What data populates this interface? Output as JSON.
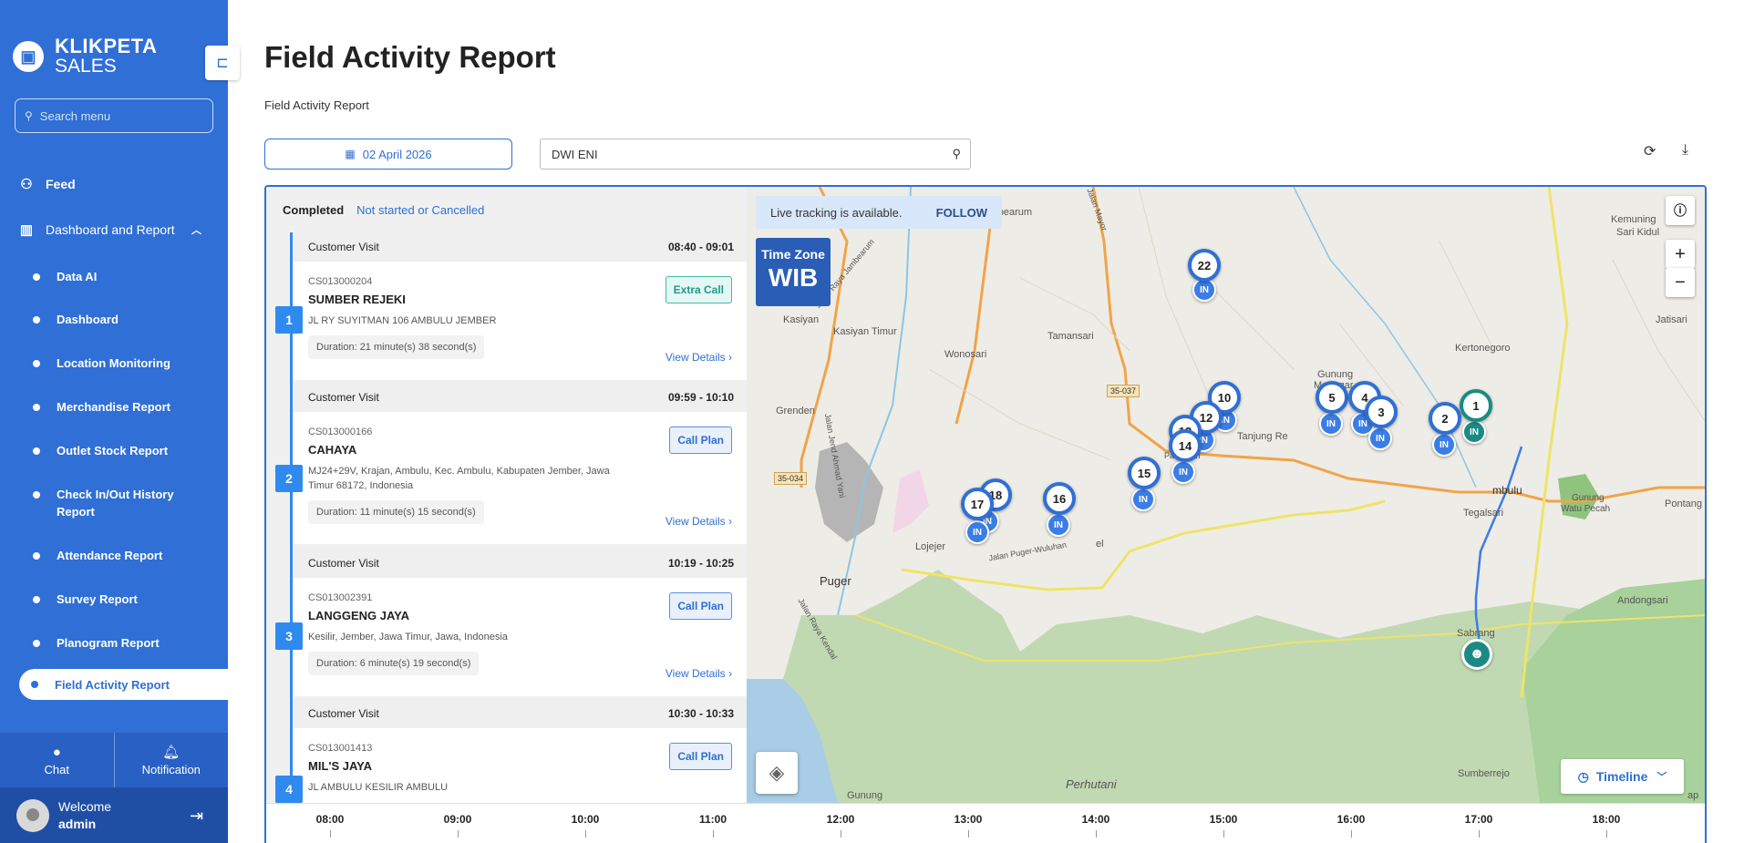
{
  "brand": {
    "line1": "KLIKPETA",
    "line2": "SALES"
  },
  "sidebar": {
    "search_placeholder": "Search menu",
    "feed": "Feed",
    "dashboard_group": "Dashboard and Report",
    "items": [
      "Data AI",
      "Dashboard",
      "Location Monitoring",
      "Merchandise Report",
      "Outlet Stock Report",
      "Check In/Out History Report",
      "Attendance Report",
      "Survey Report",
      "Planogram Report"
    ],
    "active": "Field Activity Report",
    "chat": "Chat",
    "notification": "Notification",
    "welcome": "Welcome",
    "username": "admin"
  },
  "page": {
    "title": "Field Activity Report",
    "breadcrumb": "Field Activity Report",
    "date": "02 April 2026",
    "user_value": "DWI ENI"
  },
  "filters": {
    "completed": "Completed",
    "not_started": "Not started or Cancelled"
  },
  "visits": [
    {
      "num": "1",
      "type": "Customer Visit",
      "time": "08:40 - 09:01",
      "code": "CS013000204",
      "name": "SUMBER REJEKI",
      "address": "JL RY SUYITMAN 106 AMBULU JEMBER",
      "duration": "Duration: 21 minute(s) 38 second(s)",
      "badge": "Extra Call",
      "details": "View Details ›"
    },
    {
      "num": "2",
      "type": "Customer Visit",
      "time": "09:59 - 10:10",
      "code": "CS013000166",
      "name": "CAHAYA",
      "address": "MJ24+29V, Krajan, Ambulu, Kec. Ambulu, Kabupaten Jember, Jawa Timur 68172, Indonesia",
      "duration": "Duration: 11 minute(s) 15 second(s)",
      "badge": "Call Plan",
      "details": "View Details ›"
    },
    {
      "num": "3",
      "type": "Customer Visit",
      "time": "10:19 - 10:25",
      "code": "CS013002391",
      "name": "LANGGENG JAYA",
      "address": "Kesilir, Jember, Jawa Timur, Jawa, Indonesia",
      "duration": "Duration: 6 minute(s) 19 second(s)",
      "badge": "Call Plan",
      "details": "View Details ›"
    },
    {
      "num": "4",
      "type": "Customer Visit",
      "time": "10:30 - 10:33",
      "code": "CS013001413",
      "name": "MIL'S JAYA",
      "address": "JL AMBULU KESILIR AMBULU",
      "badge": "Call Plan"
    }
  ],
  "map": {
    "live_text": "Live tracking is available.",
    "follow": "FOLLOW",
    "tz_label": "Time Zone",
    "tz_value": "WIB",
    "timeline": "Timeline",
    "labels": {
      "jambearum": "Jambearum",
      "kasiyan": "Kasiyan",
      "kasiyan_timur": "Kasiyan Timur",
      "wonosari": "Wonosari",
      "tamansari": "Tamansari",
      "grenden": "Grenden",
      "puger": "Puger",
      "lojejer": "Lojejer",
      "tanjung": "Tanjung Re",
      "tegalsari": "Tegalsari",
      "mbulu": "mbulu",
      "kemuning": "Kemuning",
      "sari_kidul": "Sari Kidul",
      "kertonegoro": "Kertonegoro",
      "jatisari": "Jatisari",
      "gunung_manggar_1": "Gunung",
      "gunung_manggar_2": "Manggar",
      "pontang": "Pontang",
      "andongsari": "Andongsari",
      "sabrang": "Sabrang",
      "sumberrejo": "Sumberrejo",
      "perhutani": "Perhutani",
      "gunung_watu_1": "Gunung",
      "gunung_watu_2": "Watu Pecah",
      "gunung_bottom": "Gunung",
      "el": "el",
      "ap": "ap",
      "n": "n",
      "road_1": "35-037",
      "road_2": "35-034",
      "jl_jambearum": "Jalan Raya Jambearum",
      "jl_puger": "Jalan Puger-Wuluhan",
      "jl_pahlawan": "Pahlawan",
      "jl_ahmad_yani": "Jalan Jend Ahmad Yani",
      "jl_kendal": "Jalan Raya Kendal",
      "jl_mayor": "Jalan Mayor"
    },
    "pins": [
      "22",
      "10",
      "12",
      "13",
      "14",
      "15",
      "16",
      "17",
      "18",
      "5",
      "4",
      "3",
      "2",
      "1"
    ],
    "pin_in": "IN"
  },
  "time_axis": [
    "08:00",
    "09:00",
    "10:00",
    "11:00",
    "12:00",
    "13:00",
    "14:00",
    "15:00",
    "16:00",
    "17:00",
    "18:00"
  ]
}
